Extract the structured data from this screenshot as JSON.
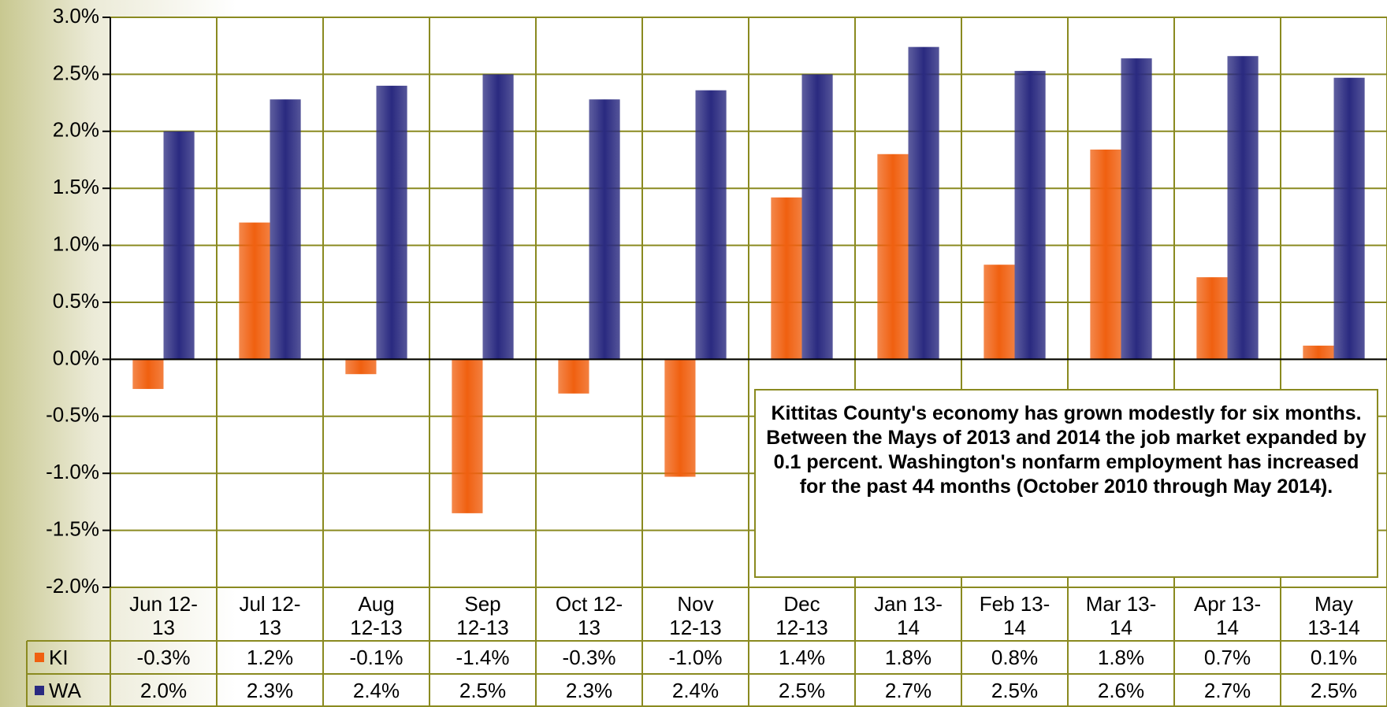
{
  "chart_data": {
    "type": "bar",
    "categories": [
      "Jun 12-13",
      "Jul 12-13",
      "Aug 12-13",
      "Sep 12-13",
      "Oct 12-13",
      "Nov 12-13",
      "Dec 12-13",
      "Jan 13-14",
      "Feb 13-14",
      "Mar 13-14",
      "Apr 13-14",
      "May 13-14"
    ],
    "series": [
      {
        "name": "KI",
        "color": "#f06010",
        "values": [
          -0.26,
          1.2,
          -0.13,
          -1.35,
          -0.3,
          -1.03,
          1.42,
          1.8,
          0.83,
          1.84,
          0.72,
          0.12
        ],
        "value_labels": [
          "-0.3%",
          "1.2%",
          "-0.1%",
          "-1.4%",
          "-0.3%",
          "-1.0%",
          "1.4%",
          "1.8%",
          "0.8%",
          "1.8%",
          "0.7%",
          "0.1%"
        ]
      },
      {
        "name": "WA",
        "color": "#2a2a80",
        "values": [
          2.0,
          2.28,
          2.4,
          2.5,
          2.28,
          2.36,
          2.5,
          2.74,
          2.53,
          2.64,
          2.66,
          2.47
        ],
        "value_labels": [
          "2.0%",
          "2.3%",
          "2.4%",
          "2.5%",
          "2.3%",
          "2.4%",
          "2.5%",
          "2.7%",
          "2.5%",
          "2.6%",
          "2.7%",
          "2.5%"
        ]
      }
    ],
    "ylim": [
      -2.0,
      3.0
    ],
    "yticks": [
      {
        "value": -2.0,
        "label": "-2.0%"
      },
      {
        "value": -1.5,
        "label": "-1.5%"
      },
      {
        "value": -1.0,
        "label": "-1.0%"
      },
      {
        "value": -0.5,
        "label": "-0.5%"
      },
      {
        "value": 0,
        "label": "0.0%"
      },
      {
        "value": 0.5,
        "label": "0.5%"
      },
      {
        "value": 1.0,
        "label": "1.0%"
      },
      {
        "value": 1.5,
        "label": "1.5%"
      },
      {
        "value": 2.0,
        "label": "2.0%"
      },
      {
        "value": 2.5,
        "label": "2.5%"
      },
      {
        "value": 3.0,
        "label": "3.0%"
      }
    ],
    "grid": true,
    "annotation": "Kittitas County's economy has grown modestly for six months. Between the Mays of 2013 and 2014 the job market expanded by 0.1 percent. Washington's nonfarm employment has increased for the past 44 months (October 2010 through May 2014)."
  }
}
